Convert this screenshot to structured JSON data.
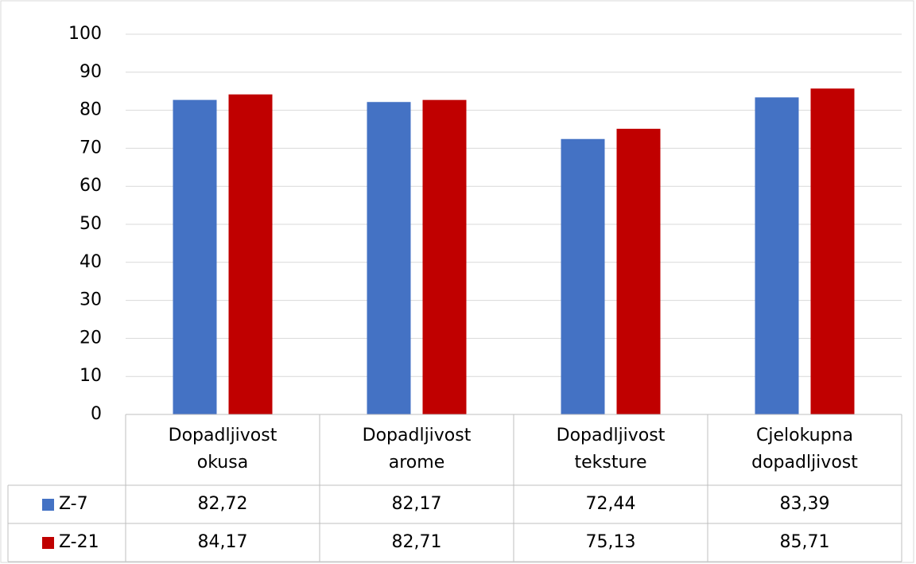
{
  "chart_data": {
    "type": "bar",
    "categories": [
      "Dopadljivost okusa",
      "Dopadljivost arome",
      "Dopadljivost teksture",
      "Cjelokupna dopadljivost"
    ],
    "series": [
      {
        "name": "Z-7",
        "color": "#4472c4",
        "values": [
          82.72,
          82.17,
          72.44,
          83.39
        ],
        "value_labels": [
          "82,72",
          "82,17",
          "72,44",
          "83,39"
        ]
      },
      {
        "name": "Z-21",
        "color": "#c00000",
        "values": [
          84.17,
          82.71,
          75.13,
          85.71
        ],
        "value_labels": [
          "84,17",
          "82,71",
          "75,13",
          "85,71"
        ]
      }
    ],
    "ylim": [
      0,
      100
    ],
    "yticks": [
      0,
      10,
      20,
      30,
      40,
      50,
      60,
      70,
      80,
      90,
      100
    ],
    "grid": true,
    "data_table": true
  }
}
